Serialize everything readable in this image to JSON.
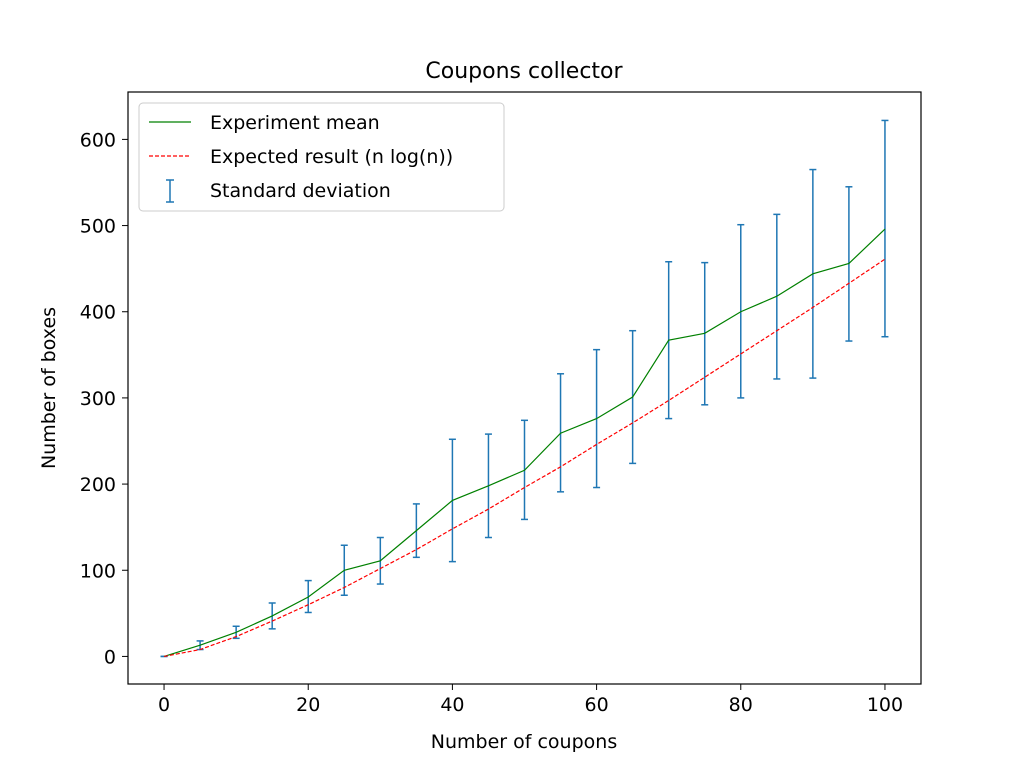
{
  "chart_data": {
    "type": "line",
    "title": "Coupons collector",
    "xlabel": "Number of coupons",
    "ylabel": "Number of boxes",
    "xlim": [
      -5,
      105
    ],
    "ylim": [
      -32,
      655
    ],
    "xticks": [
      0,
      20,
      40,
      60,
      80,
      100
    ],
    "yticks": [
      0,
      100,
      200,
      300,
      400,
      500,
      600
    ],
    "grid": false,
    "legend_position": "top-left",
    "x": [
      0,
      5,
      10,
      15,
      20,
      25,
      30,
      35,
      40,
      45,
      50,
      55,
      60,
      65,
      70,
      75,
      80,
      85,
      90,
      95,
      100
    ],
    "series": [
      {
        "name": "Experiment mean",
        "style": "solid",
        "color": "#008000",
        "values": [
          0,
          13,
          28,
          47,
          69,
          100,
          111,
          146,
          181,
          198,
          216,
          259,
          276,
          301,
          367,
          375,
          400,
          418,
          444,
          456,
          496
        ]
      },
      {
        "name": "Expected result (n log(n))",
        "style": "dashed",
        "color": "#ff0000",
        "values": [
          0,
          8,
          23,
          41,
          60,
          80,
          102,
          124,
          148,
          171,
          196,
          220,
          246,
          271,
          297,
          324,
          351,
          378,
          405,
          433,
          461
        ]
      }
    ],
    "errorbars": {
      "name": "Standard deviation",
      "color": "#1f77b4",
      "lower": [
        0,
        8,
        21,
        32,
        51,
        71,
        84,
        115,
        110,
        138,
        159,
        191,
        196,
        224,
        276,
        292,
        300,
        322,
        323,
        366,
        371
      ],
      "upper": [
        0,
        18,
        35,
        62,
        88,
        129,
        138,
        177,
        252,
        258,
        274,
        328,
        356,
        378,
        458,
        457,
        501,
        513,
        565,
        545,
        622
      ]
    }
  }
}
